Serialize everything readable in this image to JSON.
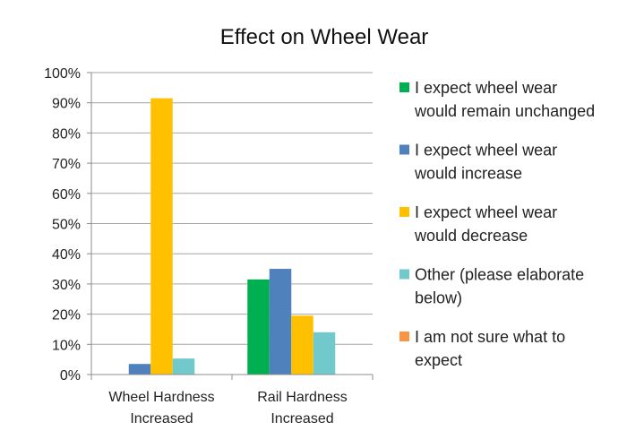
{
  "chart_data": {
    "type": "bar",
    "title": "Effect on Wheel Wear",
    "categories": [
      [
        "Wheel Hardness",
        "Increased"
      ],
      [
        "Rail Hardness",
        "Increased"
      ]
    ],
    "ylim": [
      0,
      100
    ],
    "yticks": [
      0,
      10,
      20,
      30,
      40,
      50,
      60,
      70,
      80,
      90,
      100
    ],
    "y_tick_format": "{v}%",
    "grid": true,
    "legend_position": "right",
    "series": [
      {
        "name": "I expect wheel wear would remain unchanged",
        "legend_lines": [
          "I expect wheel wear",
          "would remain unchanged"
        ],
        "color": "#00b050",
        "values": [
          0,
          31.5
        ]
      },
      {
        "name": "I expect wheel wear would increase",
        "legend_lines": [
          "I expect wheel wear",
          "would increase"
        ],
        "color": "#4f81bd",
        "values": [
          3.5,
          35
        ]
      },
      {
        "name": "I expect wheel wear would decrease",
        "legend_lines": [
          "I expect wheel wear",
          "would decrease"
        ],
        "color": "#ffc000",
        "values": [
          91.5,
          19.5
        ]
      },
      {
        "name": "Other (please elaborate below)",
        "legend_lines": [
          "Other (please elaborate",
          "below)"
        ],
        "color": "#72c9cc",
        "values": [
          5.3,
          14
        ]
      },
      {
        "name": "I am not sure what to expect",
        "legend_lines": [
          "I am not sure what to",
          "expect"
        ],
        "color": "#f79646",
        "values": [
          0,
          0
        ]
      }
    ]
  }
}
